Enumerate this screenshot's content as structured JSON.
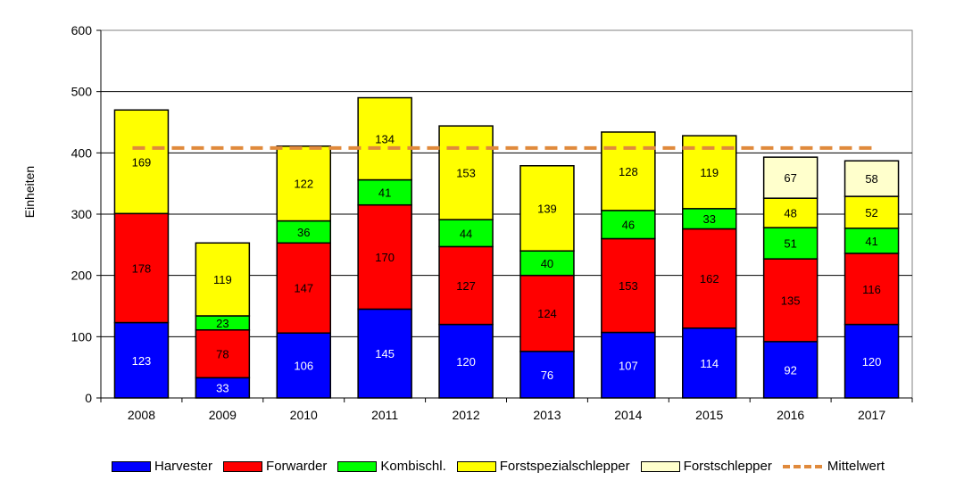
{
  "chart_data": {
    "type": "bar",
    "stacked": true,
    "title": "",
    "xlabel": "",
    "ylabel": "Einheiten",
    "ylim": [
      0,
      600
    ],
    "yticks": [
      0,
      100,
      200,
      300,
      400,
      500,
      600
    ],
    "categories": [
      "2008",
      "2009",
      "2010",
      "2011",
      "2012",
      "2013",
      "2014",
      "2015",
      "2016",
      "2017"
    ],
    "series": [
      {
        "name": "Harvester",
        "color": "#0000ff",
        "label_color": "#ffffff",
        "values": [
          123,
          33,
          106,
          145,
          120,
          76,
          107,
          114,
          92,
          120
        ]
      },
      {
        "name": "Forwarder",
        "color": "#ff0000",
        "label_color": "#000000",
        "values": [
          178,
          78,
          147,
          170,
          127,
          124,
          153,
          162,
          135,
          116
        ]
      },
      {
        "name": "Kombischl.",
        "color": "#00ff00",
        "label_color": "#000000",
        "values": [
          null,
          23,
          36,
          41,
          44,
          40,
          46,
          33,
          51,
          41
        ]
      },
      {
        "name": "Forstspezialschlepper",
        "color": "#ffff00",
        "label_color": "#000000",
        "values": [
          169,
          119,
          122,
          134,
          153,
          139,
          128,
          119,
          48,
          52
        ]
      },
      {
        "name": "Forstschlepper",
        "color": "#ffffcc",
        "label_color": "#000000",
        "values": [
          null,
          null,
          null,
          null,
          null,
          null,
          null,
          null,
          67,
          58
        ]
      }
    ],
    "reference_line": {
      "name": "Mittelwert",
      "value": 408,
      "color": "#e08a3c",
      "style": "dashed"
    },
    "grid": true,
    "legend_position": "bottom"
  }
}
